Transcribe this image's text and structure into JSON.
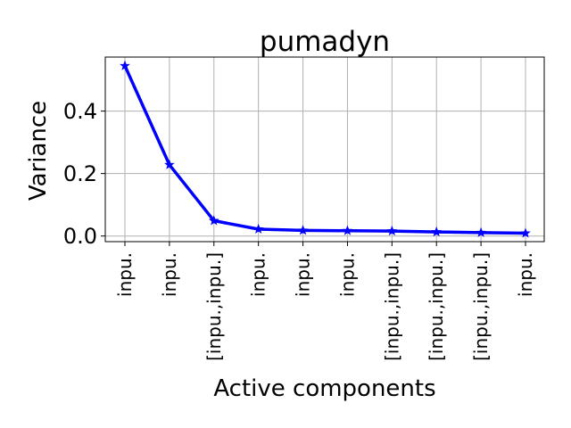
{
  "chart_data": {
    "type": "line",
    "title": "pumadyn",
    "xlabel": "Active components",
    "ylabel": "Variance",
    "categories": [
      "inpu.",
      "inpu.",
      "[inpu.,inpu.]",
      "inpu.",
      "inpu.",
      "inpu.",
      "[inpu.,inpu.]",
      "[inpu.,inpu.]",
      "[inpu.,inpu.]",
      "inpu."
    ],
    "series": [
      {
        "values": [
          0.545,
          0.228,
          0.049,
          0.022,
          0.018,
          0.017,
          0.016,
          0.013,
          0.011,
          0.009
        ],
        "color": "#0000ff",
        "marker": "star"
      }
    ],
    "yticks": [
      {
        "value": 0.0,
        "label": "0.0"
      },
      {
        "value": 0.2,
        "label": "0.2"
      },
      {
        "value": 0.4,
        "label": "0.4"
      }
    ],
    "ylim": [
      -0.018,
      0.573
    ],
    "grid": true
  }
}
